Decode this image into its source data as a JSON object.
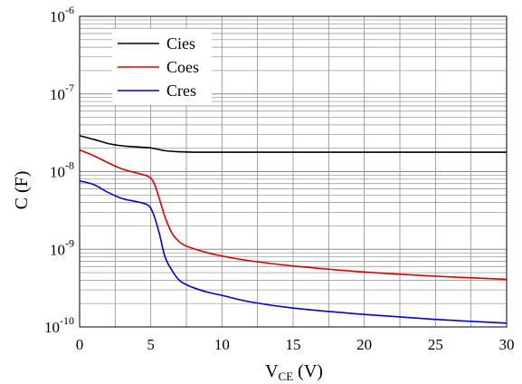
{
  "chart_data": {
    "type": "line",
    "xlabel_main": "V",
    "xlabel_sub": "CE",
    "xlabel_unit": " (V)",
    "ylabel": "C (F)",
    "x_scale": "linear",
    "y_scale": "log",
    "xlim": [
      0,
      30
    ],
    "ylim": [
      1e-10,
      1e-06
    ],
    "x_ticks": [
      0,
      5,
      10,
      15,
      20,
      25,
      30
    ],
    "x_tick_labels": [
      "0",
      "5",
      "10",
      "15",
      "20",
      "25",
      "30"
    ],
    "y_ticks": [
      {
        "value": 1e-10,
        "base": "10",
        "exp": "-10"
      },
      {
        "value": 1e-09,
        "base": "10",
        "exp": "-9"
      },
      {
        "value": 1e-08,
        "base": "10",
        "exp": "-8"
      },
      {
        "value": 1e-07,
        "base": "10",
        "exp": "-7"
      },
      {
        "value": 1e-06,
        "base": "10",
        "exp": "-6"
      }
    ],
    "grid": true,
    "legend_position": "top-left",
    "series": [
      {
        "name": "Cies",
        "color": "#000000",
        "x": [
          0,
          1,
          2,
          3,
          4,
          5,
          6,
          7,
          8,
          10,
          15,
          20,
          25,
          30
        ],
        "y": [
          2.9e-08,
          2.6e-08,
          2.3e-08,
          2.15e-08,
          2.08e-08,
          2.02e-08,
          1.86e-08,
          1.8e-08,
          1.78e-08,
          1.78e-08,
          1.78e-08,
          1.78e-08,
          1.78e-08,
          1.78e-08
        ]
      },
      {
        "name": "Coes",
        "color": "#e00000",
        "x": [
          0,
          1,
          2,
          3,
          4,
          4.8,
          5.2,
          5.6,
          6,
          6.5,
          7,
          7.5,
          8,
          9,
          10,
          12,
          15,
          20,
          25,
          30
        ],
        "y": [
          1.9e-08,
          1.6e-08,
          1.3e-08,
          1.08e-08,
          9.6e-09,
          8.7e-09,
          7.3e-09,
          4.5e-09,
          2.6e-09,
          1.6e-09,
          1.25e-09,
          1.1e-09,
          1.02e-09,
          9e-10,
          8.2e-10,
          7.1e-10,
          6.1e-10,
          5.1e-10,
          4.5e-10,
          4.1e-10
        ]
      },
      {
        "name": "Cres",
        "color": "#0000e0",
        "x": [
          0,
          1,
          2,
          3,
          4,
          4.8,
          5.2,
          5.6,
          6,
          6.5,
          7,
          7.5,
          8,
          9,
          10,
          12,
          15,
          20,
          25,
          30
        ],
        "y": [
          7.6e-09,
          6.8e-09,
          5.4e-09,
          4.5e-09,
          4.1e-09,
          3.7e-09,
          2.8e-09,
          1.6e-09,
          8e-10,
          5.3e-10,
          4e-10,
          3.5e-10,
          3.2e-10,
          2.8e-10,
          2.55e-10,
          2.1e-10,
          1.75e-10,
          1.45e-10,
          1.25e-10,
          1.12e-10
        ]
      }
    ]
  }
}
